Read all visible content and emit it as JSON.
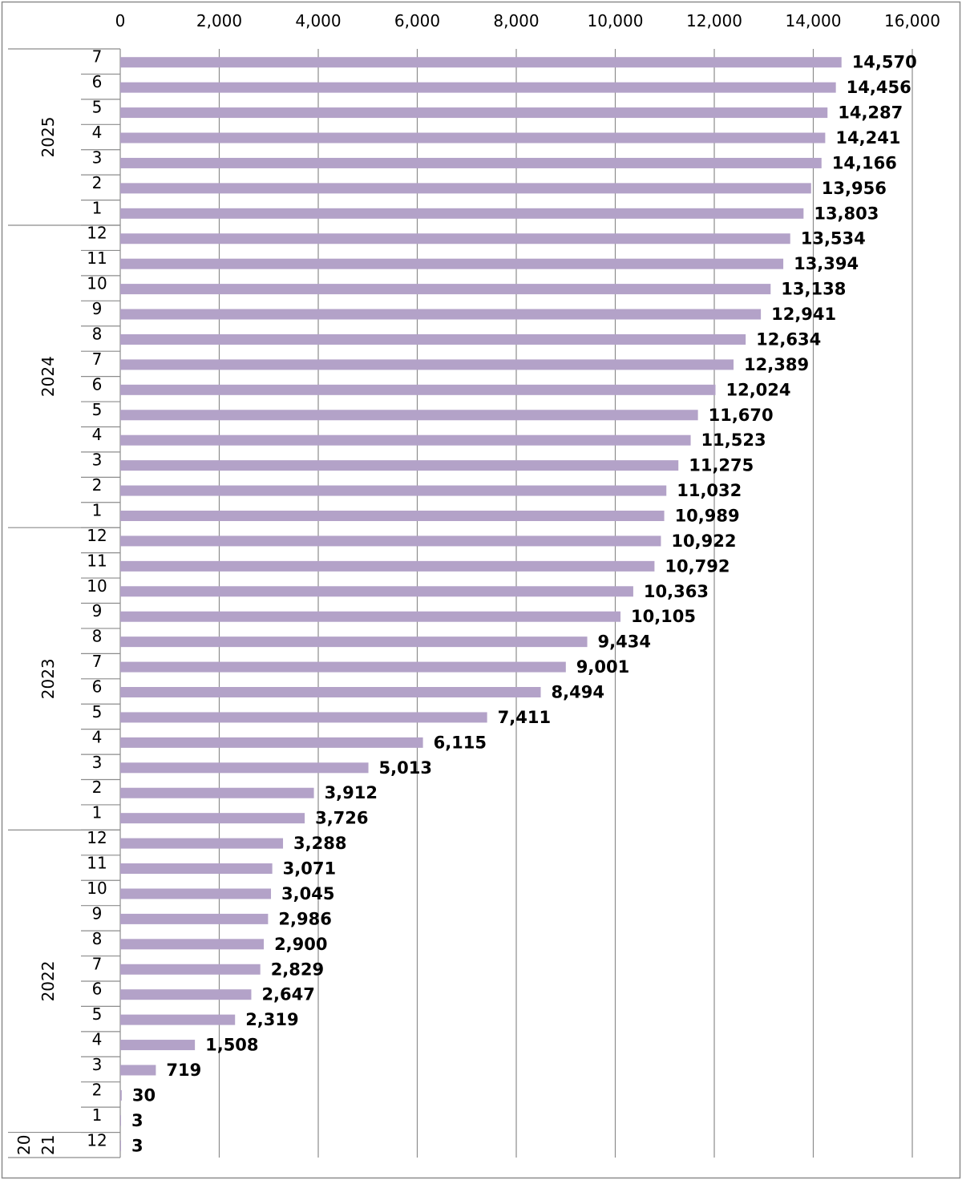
{
  "chart_data": {
    "type": "bar",
    "orientation": "horizontal",
    "title": "",
    "xlabel": "",
    "ylabel": "",
    "xlim": [
      0,
      16000
    ],
    "x_ticks": [
      0,
      2000,
      4000,
      6000,
      8000,
      10000,
      12000,
      14000,
      16000
    ],
    "x_tick_labels": [
      "0",
      "2,000",
      "4,000",
      "6,000",
      "8,000",
      "10,000",
      "12,000",
      "14,000",
      "16,000"
    ],
    "x_axis_position": "top",
    "grid": true,
    "legend": false,
    "bar_color": "#b3a2c8",
    "groups": [
      {
        "label": "2025",
        "categories": [
          "7",
          "6",
          "5",
          "4",
          "3",
          "2",
          "1"
        ],
        "values": [
          14570,
          14456,
          14287,
          14241,
          14166,
          13956,
          13803
        ]
      },
      {
        "label": "2024",
        "categories": [
          "12",
          "11",
          "10",
          "9",
          "8",
          "7",
          "6",
          "5",
          "4",
          "3",
          "2",
          "1"
        ],
        "values": [
          13534,
          13394,
          13138,
          12941,
          12634,
          12389,
          12024,
          11670,
          11523,
          11275,
          11032,
          10989
        ]
      },
      {
        "label": "2023",
        "categories": [
          "12",
          "11",
          "10",
          "9",
          "8",
          "7",
          "6",
          "5",
          "4",
          "3",
          "2",
          "1"
        ],
        "values": [
          10922,
          10792,
          10363,
          10105,
          9434,
          9001,
          8494,
          7411,
          6115,
          5013,
          3912,
          3726
        ]
      },
      {
        "label": "2022",
        "categories": [
          "12",
          "11",
          "10",
          "9",
          "8",
          "7",
          "6",
          "5",
          "4",
          "3",
          "2",
          "1"
        ],
        "values": [
          3288,
          3071,
          3045,
          2986,
          2900,
          2829,
          2647,
          2319,
          1508,
          719,
          30,
          3
        ]
      },
      {
        "label": "2021",
        "label_display": [
          "20",
          "21"
        ],
        "categories": [
          "12"
        ],
        "values": [
          3
        ]
      }
    ]
  }
}
